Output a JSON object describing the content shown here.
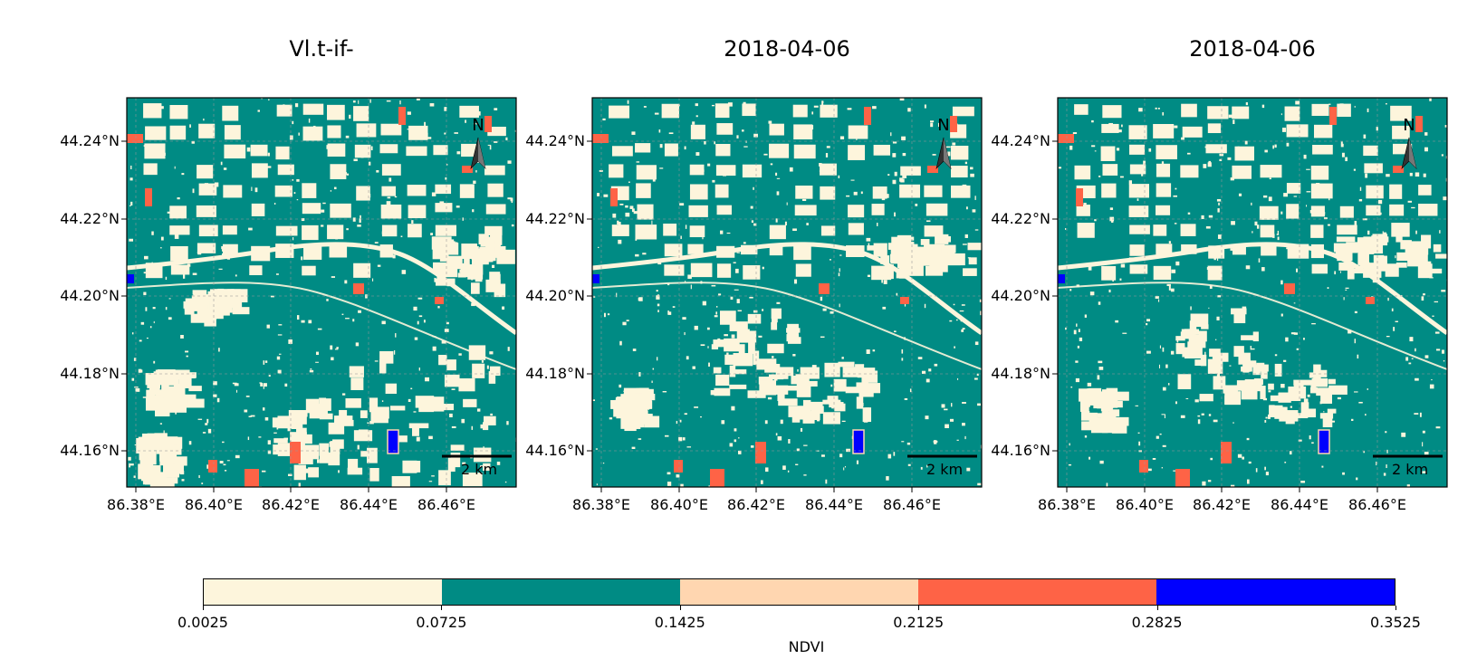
{
  "panels": [
    {
      "title": "Vl.t-if-"
    },
    {
      "title": "2018-04-06"
    },
    {
      "title": "2018-04-06"
    }
  ],
  "map_axes": {
    "lon_ticks": [
      "86.38°E",
      "86.40°E",
      "86.42°E",
      "86.44°E",
      "86.46°E"
    ],
    "lat_ticks": [
      "44.24°N",
      "44.22°N",
      "44.20°N",
      "44.18°N",
      "44.16°N"
    ],
    "north_arrow": "N",
    "scale_bar": "2 km",
    "gridlines": true
  },
  "colorbar": {
    "label": "NDVI",
    "ticks": [
      "0.0025",
      "0.0725",
      "0.1425",
      "0.2125",
      "0.2825",
      "0.3525"
    ],
    "colors": [
      "#fdf5dc",
      "#008b84",
      "#ffd6b0",
      "#fe6346",
      "#0000fe"
    ]
  },
  "colors": {
    "background_class": "#008b84",
    "bare_class": "#fdf5dc",
    "water_class": "#0000fe",
    "red_class": "#fe6346"
  }
}
